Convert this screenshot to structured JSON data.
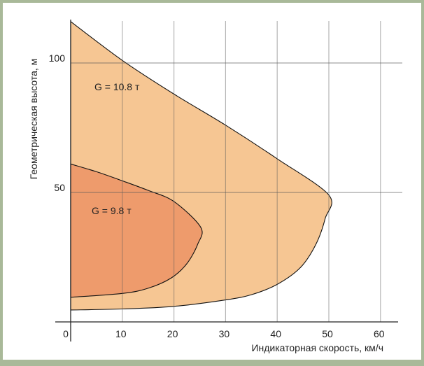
{
  "chart_data": {
    "type": "area",
    "xlabel": "Индикаторная скорость, км/ч",
    "ylabel": "Геометрическая высота, м",
    "xlim": [
      0,
      60
    ],
    "ylim": [
      0,
      116
    ],
    "x_ticks": [
      "0",
      "10",
      "20",
      "30",
      "40",
      "50",
      "60"
    ],
    "y_ticks": [
      "50",
      "100"
    ],
    "grid": true,
    "colors": {
      "outer": "#f6c693",
      "inner": "#ee9b6c",
      "frame": "#a9b999"
    },
    "series": [
      {
        "name": "G = 10.8 т",
        "boundary": [
          [
            0,
            116
          ],
          [
            10,
            101
          ],
          [
            20,
            88
          ],
          [
            30,
            76
          ],
          [
            40,
            63
          ],
          [
            50,
            49
          ],
          [
            49.3,
            40
          ],
          [
            47.5,
            30
          ],
          [
            44.5,
            21
          ],
          [
            40,
            14.5
          ],
          [
            35,
            10.5
          ],
          [
            30,
            8.5
          ],
          [
            20,
            6
          ],
          [
            10,
            5
          ],
          [
            0,
            4.6
          ]
        ]
      },
      {
        "name": "G = 9.8 т",
        "boundary": [
          [
            0,
            61
          ],
          [
            5,
            58
          ],
          [
            10,
            54.5
          ],
          [
            15,
            50.8
          ],
          [
            20,
            46.5
          ],
          [
            25.2,
            36.5
          ],
          [
            24.6,
            30
          ],
          [
            22.5,
            22.5
          ],
          [
            19.5,
            17
          ],
          [
            15,
            13
          ],
          [
            10,
            11
          ],
          [
            0,
            9.5
          ]
        ]
      }
    ]
  }
}
